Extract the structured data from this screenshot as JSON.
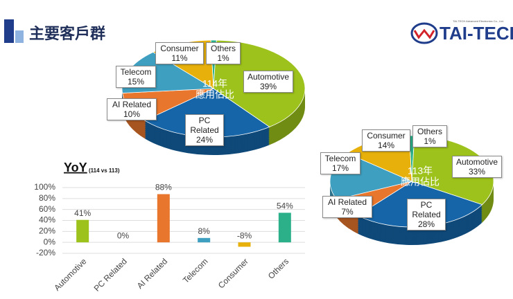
{
  "title": "主要客戶群",
  "logo": {
    "name": "TAI-TECH",
    "tagline": "TAI-TECH Advanced Electronics Co., Ltd."
  },
  "chart_data": [
    {
      "type": "pie",
      "center_label": [
        "114年",
        "應用佔比"
      ],
      "categories": [
        "Others",
        "Automotive",
        "PC Related",
        "AI Related",
        "Telecom",
        "Consumer"
      ],
      "values": [
        1,
        39,
        24,
        10,
        15,
        11
      ],
      "value_labels": [
        "1%",
        "39%",
        "24%",
        "10%",
        "15%",
        "11%"
      ],
      "colors": [
        "#2bb08a",
        "#9dc21b",
        "#1565a8",
        "#e8762c",
        "#3e9fc0",
        "#e7b00b"
      ]
    },
    {
      "type": "pie",
      "center_label": [
        "113年",
        "應用佔比"
      ],
      "categories": [
        "Others",
        "Automotive",
        "PC Related",
        "AI Related",
        "Telecom",
        "Consumer"
      ],
      "values": [
        1,
        33,
        28,
        7,
        17,
        14
      ],
      "value_labels": [
        "1%",
        "33%",
        "28%",
        "7%",
        "17%",
        "14%"
      ],
      "colors": [
        "#2bb08a",
        "#9dc21b",
        "#1565a8",
        "#e8762c",
        "#3e9fc0",
        "#e7b00b"
      ]
    },
    {
      "type": "bar",
      "title": "YoY",
      "subtitle": "(114 vs 113)",
      "categories": [
        "Automotive",
        "PC Related",
        "AI Related",
        "Telecom",
        "Consumer",
        "Others"
      ],
      "values": [
        41,
        0,
        88,
        8,
        -8,
        54
      ],
      "value_labels": [
        "41%",
        "0%",
        "88%",
        "8%",
        "-8%",
        "54%"
      ],
      "colors": [
        "#9dc21b",
        "#1565a8",
        "#e8762c",
        "#3e9fc0",
        "#e7b00b",
        "#2bb08a"
      ],
      "ylim": [
        -20,
        100
      ],
      "yticks": [
        {
          "value": -20,
          "label": "-20%"
        },
        {
          "value": 0,
          "label": "0%"
        },
        {
          "value": 20,
          "label": "20%"
        },
        {
          "value": 40,
          "label": "40%"
        },
        {
          "value": 60,
          "label": "60%"
        },
        {
          "value": 80,
          "label": "80%"
        },
        {
          "value": 100,
          "label": "100%"
        }
      ],
      "grid": true
    }
  ]
}
